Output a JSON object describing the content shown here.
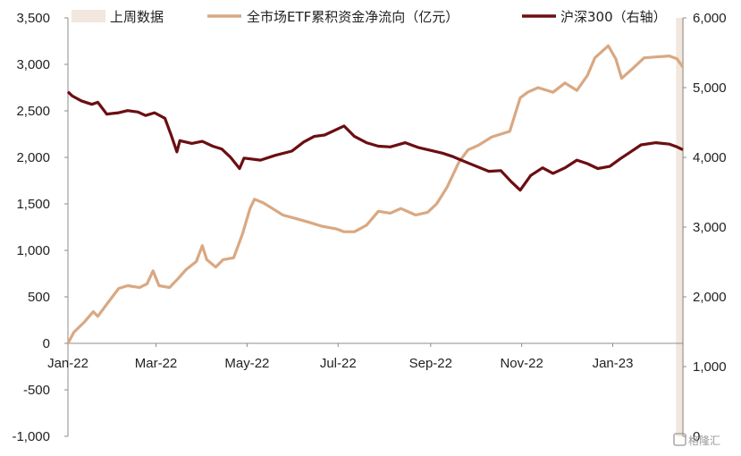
{
  "chart_data": {
    "type": "line",
    "legend": {
      "placement": "top",
      "items": [
        {
          "label": "上周数据",
          "color": "#f1e7dc",
          "kind": "patch"
        },
        {
          "label": "全市场ETF累积资金净流向（亿元）",
          "color": "#d9a882",
          "kind": "line"
        },
        {
          "label": "沪深300（右轴）",
          "color": "#6b0e12",
          "kind": "line"
        }
      ]
    },
    "x_tick_labels": [
      "Jan-22",
      "Mar-22",
      "May-22",
      "Jul-22",
      "Sep-22",
      "Nov-22",
      "Jan-23"
    ],
    "x_domain": [
      "2022-01-01",
      "2023-02-17"
    ],
    "left_axis": {
      "ylim": [
        -1000,
        3500
      ],
      "ticks": [
        "3,500",
        "3,000",
        "2,500",
        "2,000",
        "1,500",
        "1,000",
        "500",
        "0",
        "-500",
        "-1,000"
      ]
    },
    "right_axis": {
      "ylim": [
        0,
        6000
      ],
      "ticks": [
        "6,000",
        "5,000",
        "4,000",
        "3,000",
        "2,000",
        "1,000",
        "0"
      ]
    },
    "highlight_band": {
      "label": "上周数据",
      "from": "2023-02-13",
      "to": "2023-02-17"
    },
    "series": [
      {
        "name": "全市场ETF累积资金净流向（亿元）",
        "axis": "left",
        "color": "#d9a882",
        "points": [
          [
            "2022-01-01",
            0
          ],
          [
            "2022-01-05",
            120
          ],
          [
            "2022-01-12",
            230
          ],
          [
            "2022-01-18",
            340
          ],
          [
            "2022-01-21",
            290
          ],
          [
            "2022-01-27",
            420
          ],
          [
            "2022-02-04",
            590
          ],
          [
            "2022-02-10",
            620
          ],
          [
            "2022-02-18",
            600
          ],
          [
            "2022-02-23",
            640
          ],
          [
            "2022-02-27",
            780
          ],
          [
            "2022-03-03",
            620
          ],
          [
            "2022-03-10",
            600
          ],
          [
            "2022-03-16",
            700
          ],
          [
            "2022-03-21",
            790
          ],
          [
            "2022-03-28",
            880
          ],
          [
            "2022-04-01",
            1050
          ],
          [
            "2022-04-04",
            900
          ],
          [
            "2022-04-10",
            820
          ],
          [
            "2022-04-15",
            900
          ],
          [
            "2022-04-22",
            920
          ],
          [
            "2022-04-28",
            1180
          ],
          [
            "2022-05-03",
            1450
          ],
          [
            "2022-05-06",
            1550
          ],
          [
            "2022-05-12",
            1510
          ],
          [
            "2022-05-18",
            1450
          ],
          [
            "2022-05-25",
            1380
          ],
          [
            "2022-06-03",
            1340
          ],
          [
            "2022-06-12",
            1300
          ],
          [
            "2022-06-20",
            1260
          ],
          [
            "2022-06-30",
            1230
          ],
          [
            "2022-07-05",
            1200
          ],
          [
            "2022-07-12",
            1200
          ],
          [
            "2022-07-20",
            1270
          ],
          [
            "2022-07-28",
            1420
          ],
          [
            "2022-08-05",
            1400
          ],
          [
            "2022-08-12",
            1450
          ],
          [
            "2022-08-22",
            1380
          ],
          [
            "2022-08-30",
            1410
          ],
          [
            "2022-09-05",
            1500
          ],
          [
            "2022-09-12",
            1680
          ],
          [
            "2022-09-20",
            1950
          ],
          [
            "2022-09-26",
            2080
          ],
          [
            "2022-10-03",
            2130
          ],
          [
            "2022-10-12",
            2220
          ],
          [
            "2022-10-24",
            2280
          ],
          [
            "2022-10-31",
            2640
          ],
          [
            "2022-11-05",
            2700
          ],
          [
            "2022-11-12",
            2750
          ],
          [
            "2022-11-22",
            2700
          ],
          [
            "2022-11-30",
            2800
          ],
          [
            "2022-12-08",
            2720
          ],
          [
            "2022-12-15",
            2880
          ],
          [
            "2022-12-20",
            3070
          ],
          [
            "2022-12-29",
            3200
          ],
          [
            "2023-01-03",
            3060
          ],
          [
            "2023-01-07",
            2850
          ],
          [
            "2023-01-14",
            2950
          ],
          [
            "2023-01-22",
            3070
          ],
          [
            "2023-01-30",
            3080
          ],
          [
            "2023-02-08",
            3090
          ],
          [
            "2023-02-13",
            3060
          ],
          [
            "2023-02-17",
            2970
          ]
        ]
      },
      {
        "name": "沪深300（右轴）",
        "axis": "right",
        "color": "#6b0e12",
        "points": [
          [
            "2022-01-01",
            4940
          ],
          [
            "2022-01-04",
            4880
          ],
          [
            "2022-01-10",
            4810
          ],
          [
            "2022-01-17",
            4760
          ],
          [
            "2022-01-21",
            4790
          ],
          [
            "2022-01-27",
            4620
          ],
          [
            "2022-02-04",
            4640
          ],
          [
            "2022-02-10",
            4670
          ],
          [
            "2022-02-17",
            4650
          ],
          [
            "2022-02-22",
            4600
          ],
          [
            "2022-02-28",
            4640
          ],
          [
            "2022-03-07",
            4560
          ],
          [
            "2022-03-11",
            4330
          ],
          [
            "2022-03-15",
            4080
          ],
          [
            "2022-03-17",
            4240
          ],
          [
            "2022-03-25",
            4200
          ],
          [
            "2022-04-01",
            4230
          ],
          [
            "2022-04-08",
            4160
          ],
          [
            "2022-04-14",
            4120
          ],
          [
            "2022-04-20",
            4000
          ],
          [
            "2022-04-26",
            3840
          ],
          [
            "2022-04-29",
            3990
          ],
          [
            "2022-05-10",
            3960
          ],
          [
            "2022-05-20",
            4030
          ],
          [
            "2022-05-31",
            4090
          ],
          [
            "2022-06-08",
            4220
          ],
          [
            "2022-06-15",
            4300
          ],
          [
            "2022-06-22",
            4320
          ],
          [
            "2022-07-05",
            4450
          ],
          [
            "2022-07-12",
            4300
          ],
          [
            "2022-07-20",
            4210
          ],
          [
            "2022-07-28",
            4160
          ],
          [
            "2022-08-05",
            4150
          ],
          [
            "2022-08-15",
            4210
          ],
          [
            "2022-08-24",
            4140
          ],
          [
            "2022-09-01",
            4100
          ],
          [
            "2022-09-09",
            4060
          ],
          [
            "2022-09-16",
            4010
          ],
          [
            "2022-09-26",
            3920
          ],
          [
            "2022-10-10",
            3800
          ],
          [
            "2022-10-18",
            3810
          ],
          [
            "2022-10-25",
            3650
          ],
          [
            "2022-10-31",
            3530
          ],
          [
            "2022-11-07",
            3740
          ],
          [
            "2022-11-15",
            3850
          ],
          [
            "2022-11-22",
            3770
          ],
          [
            "2022-11-30",
            3850
          ],
          [
            "2022-12-08",
            3960
          ],
          [
            "2022-12-15",
            3910
          ],
          [
            "2022-12-22",
            3840
          ],
          [
            "2022-12-30",
            3870
          ],
          [
            "2023-01-06",
            3980
          ],
          [
            "2023-01-13",
            4080
          ],
          [
            "2023-01-20",
            4180
          ],
          [
            "2023-01-30",
            4210
          ],
          [
            "2023-02-08",
            4190
          ],
          [
            "2023-02-13",
            4150
          ],
          [
            "2023-02-17",
            4110
          ]
        ]
      }
    ]
  },
  "watermark": "格隆汇"
}
